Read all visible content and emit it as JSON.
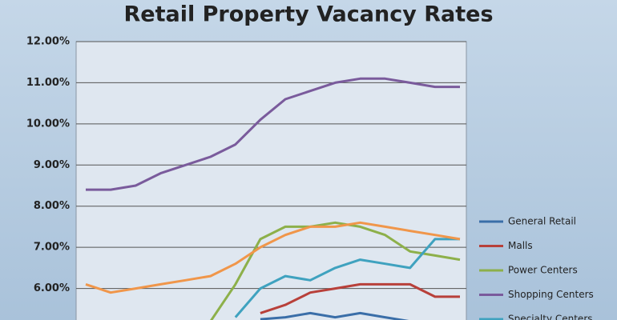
{
  "chart_data": {
    "type": "line",
    "title": "Retail Property Vacancy Rates",
    "categories": [
      null,
      null,
      null,
      null,
      null,
      null,
      null,
      null,
      null,
      null,
      null,
      null,
      null,
      null,
      null,
      null
    ],
    "series": [
      {
        "name": "General Retail",
        "color": "#3a6ea8",
        "values": [
          null,
          null,
          null,
          null,
          null,
          null,
          null,
          5.25,
          5.3,
          5.4,
          5.3,
          5.4,
          5.3,
          5.2,
          null,
          null
        ]
      },
      {
        "name": "Malls",
        "color": "#b8403a",
        "values": [
          null,
          null,
          null,
          null,
          null,
          null,
          null,
          5.4,
          5.6,
          5.9,
          6.0,
          6.1,
          6.1,
          6.1,
          5.8,
          5.8
        ]
      },
      {
        "name": "Power Centers",
        "color": "#8db04a",
        "values": [
          null,
          null,
          null,
          null,
          null,
          5.2,
          6.1,
          7.2,
          7.5,
          7.5,
          7.6,
          7.5,
          7.3,
          6.9,
          6.8,
          6.7
        ]
      },
      {
        "name": "Shopping Centers",
        "color": "#7a5b9c",
        "values": [
          8.4,
          8.4,
          8.5,
          8.8,
          9.0,
          9.2,
          9.5,
          10.1,
          10.6,
          10.8,
          11.0,
          11.1,
          11.1,
          11.0,
          10.9,
          10.9
        ]
      },
      {
        "name": "Specialty Centers",
        "color": "#3fa2bf",
        "values": [
          null,
          null,
          null,
          null,
          null,
          null,
          5.3,
          6.0,
          6.3,
          6.2,
          6.5,
          6.7,
          6.6,
          6.5,
          7.2,
          7.2
        ]
      },
      {
        "color": "#f0964a",
        "values": [
          6.1,
          5.9,
          6.0,
          6.1,
          6.2,
          6.3,
          6.6,
          7.0,
          7.3,
          7.5,
          7.5,
          7.6,
          7.5,
          7.4,
          7.3,
          7.2
        ]
      }
    ],
    "ylim": [
      5,
      12
    ],
    "yticks": [
      {
        "value": 6,
        "label": "6.00%"
      },
      {
        "value": 7,
        "label": "7.00%"
      },
      {
        "value": 8,
        "label": "8.00%"
      },
      {
        "value": 9,
        "label": "9.00%"
      },
      {
        "value": 10,
        "label": "10.00%"
      },
      {
        "value": 11,
        "label": "11.00%"
      },
      {
        "value": 12,
        "label": "12.00%"
      }
    ],
    "grid": true,
    "legend": "right"
  }
}
